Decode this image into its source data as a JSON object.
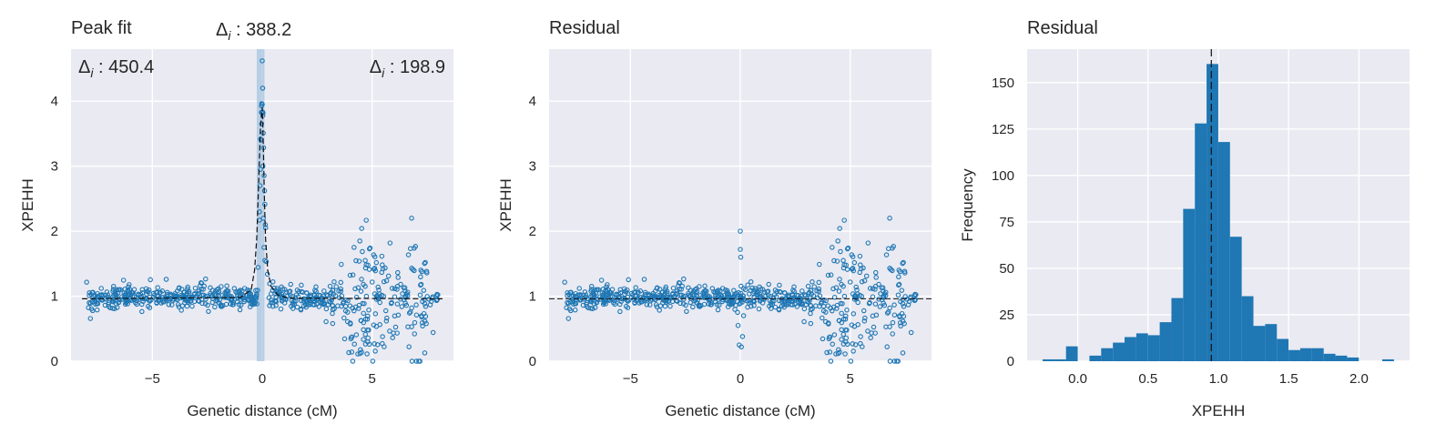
{
  "chart_data": [
    {
      "type": "scatter",
      "title": "Peak fit",
      "xlabel": "Genetic distance (cM)",
      "ylabel": "XPEHH",
      "xlim": [
        -8.7,
        8.7
      ],
      "ylim": [
        0,
        4.8
      ],
      "xticks": [
        -5,
        0,
        5
      ],
      "yticks": [
        0,
        1,
        2,
        3,
        4
      ],
      "xtick_labels": [
        "−5",
        "0",
        "5"
      ],
      "ytick_labels": [
        "0",
        "1",
        "2",
        "3",
        "4"
      ],
      "grid": true,
      "point_color": "#1f77b4",
      "peak_band": [
        -0.25,
        0.1
      ],
      "baseline": 0.96,
      "annotations": [
        {
          "label": "Δ",
          "sub": "i",
          "value": " : 388.2",
          "pos": "top-center"
        },
        {
          "label": "Δ",
          "sub": "i",
          "value": " : 450.4",
          "pos": "top-left"
        },
        {
          "label": "Δ",
          "sub": "i",
          "value": " : 198.9",
          "pos": "top-right"
        }
      ],
      "fit_curve": {
        "x": [
          -8.2,
          -1.0,
          -0.5,
          -0.35,
          -0.25,
          -0.15,
          -0.08,
          0.0,
          0.05,
          0.1,
          0.15,
          0.25,
          0.4,
          0.7,
          1.2,
          8.2
        ],
        "y": [
          0.96,
          0.98,
          1.1,
          1.4,
          1.9,
          2.9,
          3.6,
          3.9,
          3.3,
          2.5,
          1.9,
          1.4,
          1.15,
          1.02,
          0.97,
          0.96
        ]
      }
    },
    {
      "type": "scatter",
      "title": "Residual",
      "xlabel": "Genetic distance (cM)",
      "ylabel": "XPEHH",
      "xlim": [
        -8.7,
        8.7
      ],
      "ylim": [
        0,
        4.8
      ],
      "xticks": [
        -5,
        0,
        5
      ],
      "yticks": [
        0,
        1,
        2,
        3,
        4
      ],
      "xtick_labels": [
        "−5",
        "0",
        "5"
      ],
      "ytick_labels": [
        "0",
        "1",
        "2",
        "3",
        "4"
      ],
      "grid": true,
      "point_color": "#1f77b4",
      "baseline": 0.96
    },
    {
      "type": "bar",
      "title": "Residual",
      "xlabel": "XPEHH",
      "ylabel": "Frequency",
      "xlim": [
        -0.36,
        2.36
      ],
      "ylim": [
        0,
        168
      ],
      "xticks": [
        0.0,
        0.5,
        1.0,
        1.5,
        2.0
      ],
      "yticks": [
        0,
        25,
        50,
        75,
        100,
        125,
        150
      ],
      "xtick_labels": [
        "0.0",
        "0.5",
        "1.0",
        "1.5",
        "2.0"
      ],
      "ytick_labels": [
        "0",
        "25",
        "50",
        "75",
        "100",
        "125",
        "150"
      ],
      "grid": true,
      "bar_color": "#1f77b4",
      "median": 0.95,
      "bin_start": -0.25,
      "bin_width": 0.0833,
      "values": [
        1,
        1,
        8,
        0,
        3,
        7,
        10,
        13,
        15,
        14,
        21,
        34,
        82,
        128,
        160,
        118,
        67,
        35,
        19,
        20,
        12,
        6,
        7,
        7,
        4,
        3,
        2,
        0,
        0,
        1
      ]
    }
  ]
}
